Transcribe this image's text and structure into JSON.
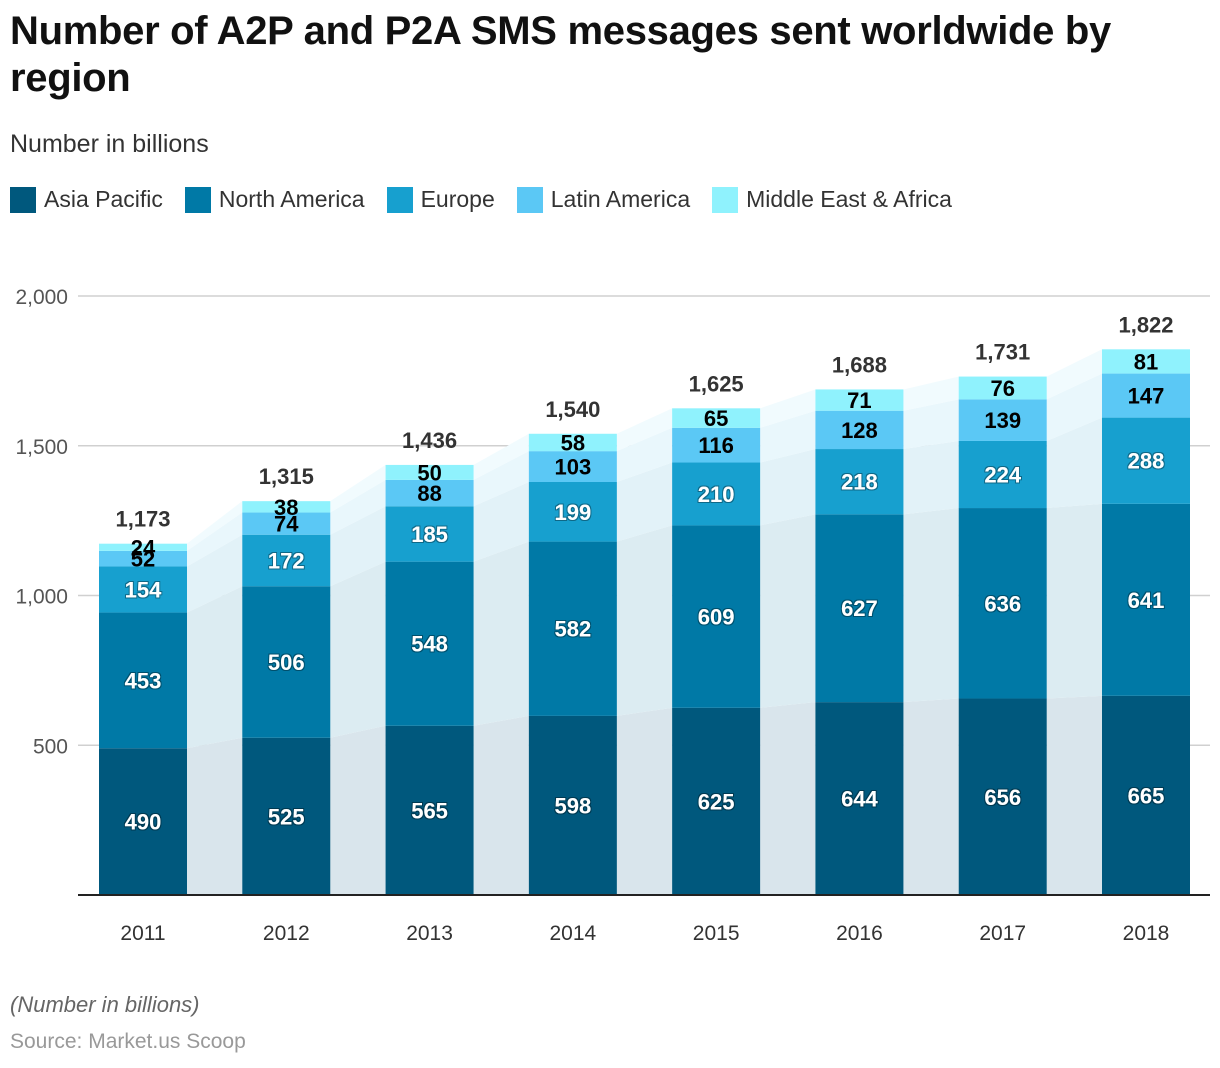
{
  "header": {
    "title": "Number of A2P and P2A SMS messages sent worldwide by region",
    "subtitle": "Number in billions"
  },
  "footer": {
    "note": "(Number in billions)",
    "source": "Source: Market.us Scoop"
  },
  "chart_data": {
    "type": "bar",
    "stacked": true,
    "title": "Number of A2P and P2A SMS messages sent worldwide by region",
    "subtitle": "Number in billions",
    "xlabel": "",
    "ylabel": "",
    "ylim": [
      0,
      2000
    ],
    "yticks": [
      500,
      1000,
      1500,
      2000
    ],
    "ytick_labels": [
      "500",
      "1,000",
      "1,500",
      "2,000"
    ],
    "grid": true,
    "legend_position": "top-left",
    "categories": [
      "2011",
      "2012",
      "2013",
      "2014",
      "2015",
      "2016",
      "2017",
      "2018"
    ],
    "series": [
      {
        "name": "Asia Pacific",
        "color": "#00587d",
        "label_color": "#ffffff",
        "values": [
          490,
          525,
          565,
          598,
          625,
          644,
          656,
          665
        ]
      },
      {
        "name": "North America",
        "color": "#0079a6",
        "label_color": "#ffffff",
        "values": [
          453,
          506,
          548,
          582,
          609,
          627,
          636,
          641
        ]
      },
      {
        "name": "Europe",
        "color": "#17a0cf",
        "label_color": "#ffffff",
        "values": [
          154,
          172,
          185,
          199,
          210,
          218,
          224,
          288
        ]
      },
      {
        "name": "Latin America",
        "color": "#5bc8f5",
        "label_color": "#000000",
        "values": [
          52,
          74,
          88,
          103,
          116,
          128,
          139,
          147
        ]
      },
      {
        "name": "Middle East & Africa",
        "color": "#8ff2fd",
        "label_color": "#000000",
        "values": [
          24,
          38,
          50,
          58,
          65,
          71,
          76,
          81
        ]
      }
    ],
    "totals": [
      1173,
      1315,
      1436,
      1540,
      1625,
      1688,
      1731,
      1822
    ],
    "total_labels": [
      "1,173",
      "1,315",
      "1,436",
      "1,540",
      "1,625",
      "1,688",
      "1,731",
      "1,822"
    ]
  }
}
